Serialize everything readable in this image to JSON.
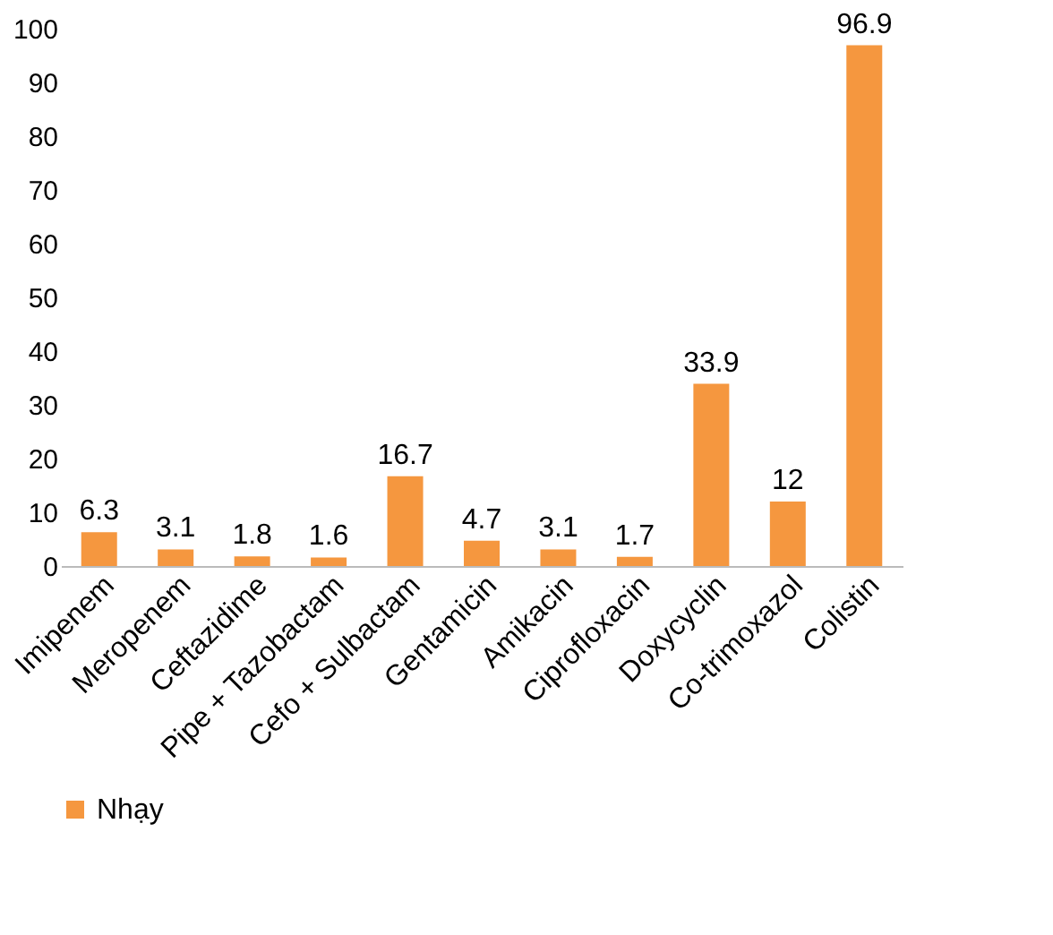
{
  "chart_data": {
    "type": "bar",
    "categories": [
      "Imipenem",
      "Meropenem",
      "Ceftazidime",
      "Pipe + Tazobactam",
      "Cefo + Sulbactam",
      "Gentamicin",
      "Amikacin",
      "Ciprofloxacin",
      "Doxycyclin",
      "Co-trimoxazol",
      "Colistin"
    ],
    "series": [
      {
        "name": "Nhạy",
        "color": "#f5973f",
        "values": [
          6.3,
          3.1,
          1.8,
          1.6,
          16.7,
          4.7,
          3.1,
          1.7,
          33.9,
          12,
          96.9
        ]
      }
    ],
    "ylim": [
      0,
      100
    ],
    "yticks": [
      0,
      10,
      20,
      30,
      40,
      50,
      60,
      70,
      80,
      90,
      100
    ],
    "data_labels": true,
    "grid": false,
    "legend": "bottom"
  }
}
